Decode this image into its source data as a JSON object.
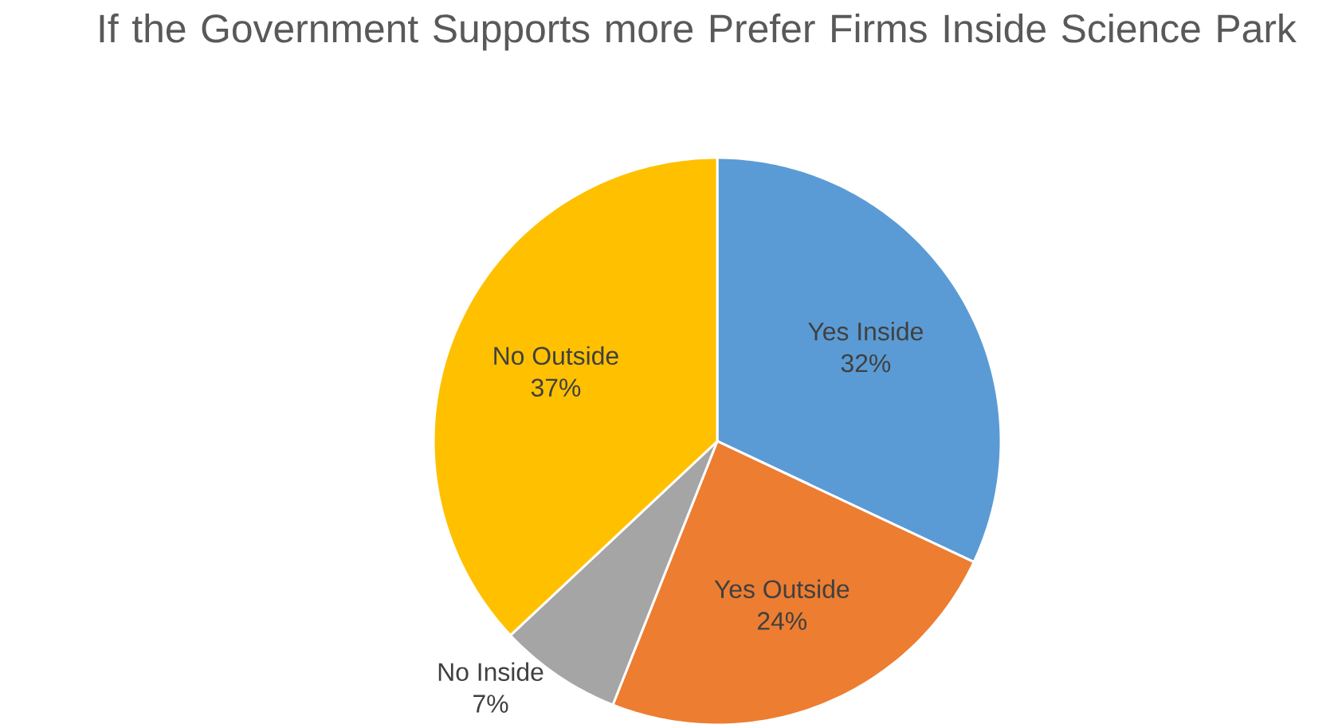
{
  "chart_data": {
    "type": "pie",
    "title": "If the Government Supports more Prefer Firms Inside Science Park",
    "categories": [
      "Yes Inside",
      "Yes Outside",
      "No Inside",
      "No Outside"
    ],
    "values": [
      32,
      24,
      7,
      37
    ],
    "colors": [
      "#5b9bd5",
      "#ed7d31",
      "#a5a5a5",
      "#ffc000"
    ],
    "value_labels": [
      "32%",
      "24%",
      "7%",
      "37%"
    ]
  }
}
